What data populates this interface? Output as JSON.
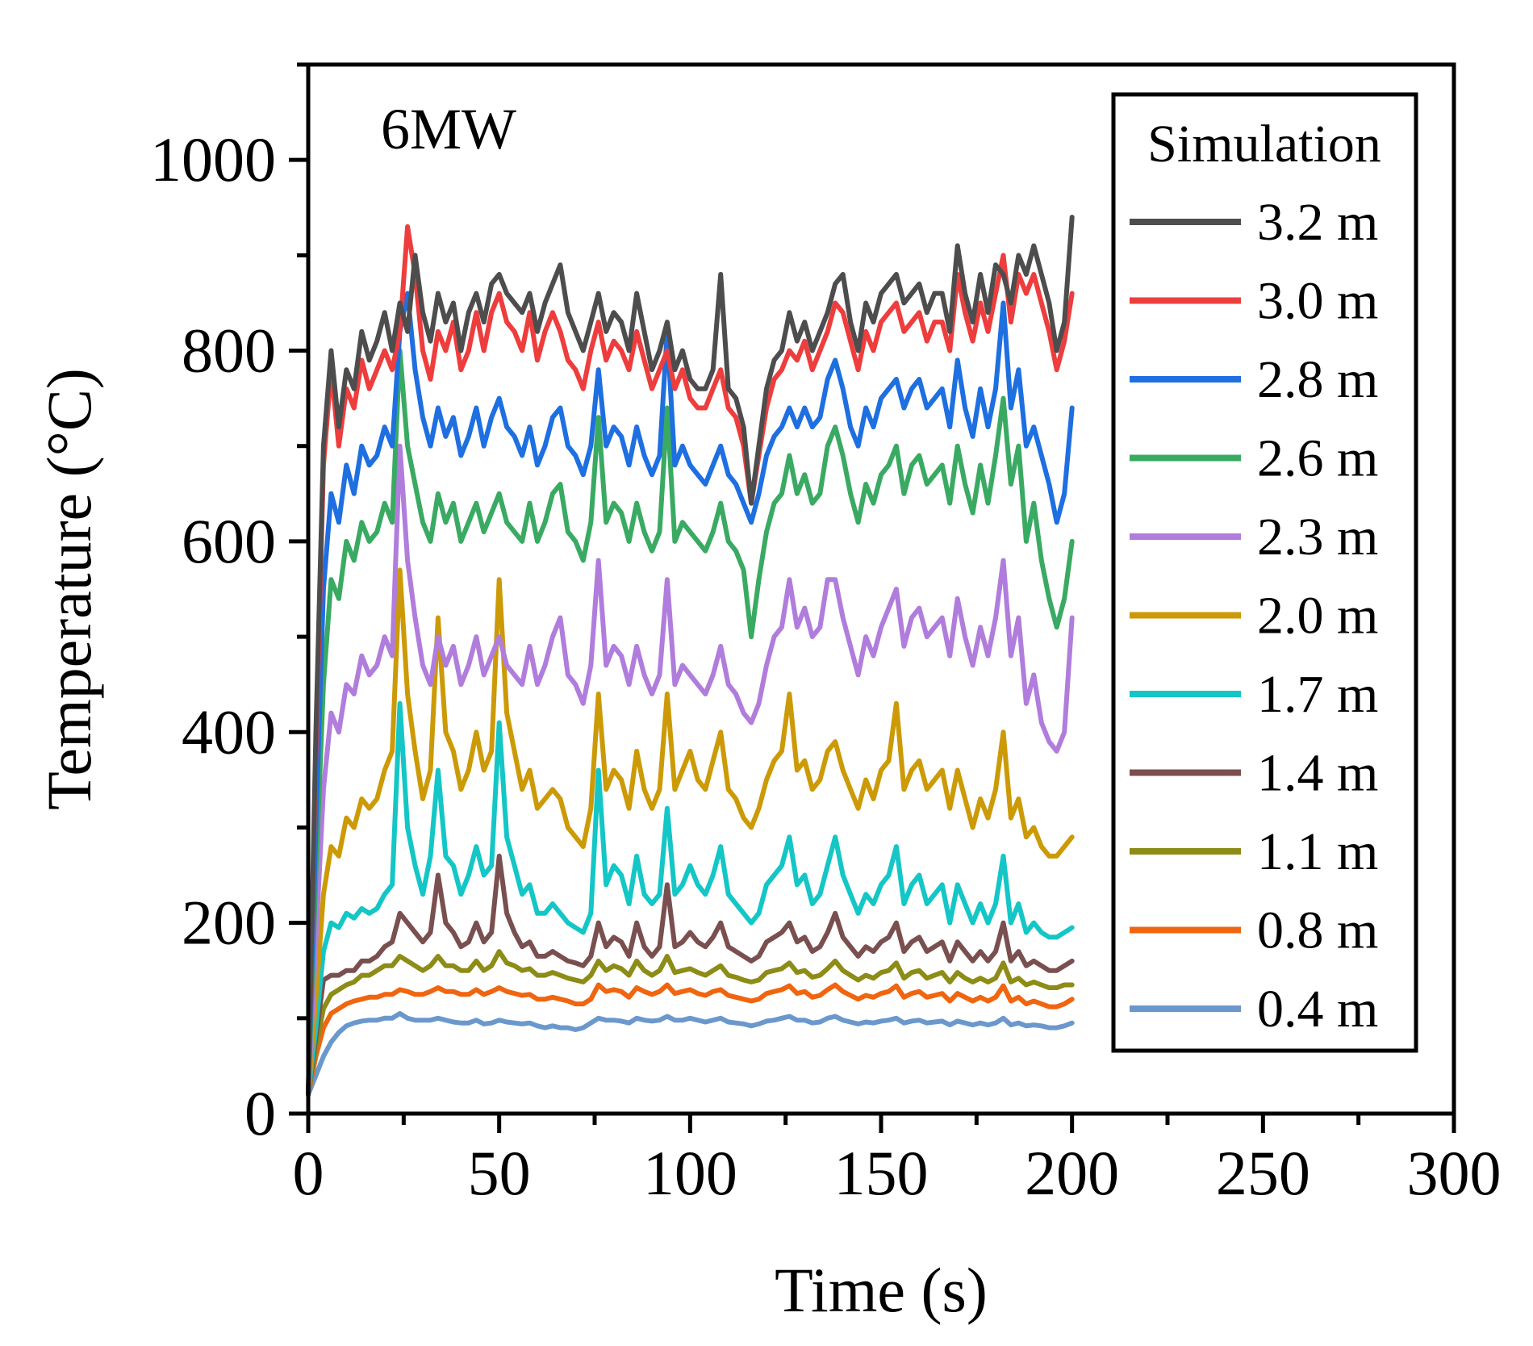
{
  "chart_data": {
    "type": "line",
    "title": "",
    "annotation": "6MW",
    "xlabel": "Time (s)",
    "ylabel": "Temperature (°C)",
    "xlim": [
      0,
      300
    ],
    "ylim": [
      0,
      1100
    ],
    "xticks": [
      0,
      50,
      100,
      150,
      200,
      250,
      300
    ],
    "yticks": [
      0,
      200,
      400,
      600,
      800,
      1000
    ],
    "x": [
      0,
      2,
      4,
      6,
      8,
      10,
      12,
      14,
      16,
      18,
      20,
      22,
      24,
      26,
      28,
      30,
      32,
      34,
      36,
      38,
      40,
      42,
      44,
      46,
      48,
      50,
      52,
      54,
      56,
      58,
      60,
      62,
      64,
      66,
      68,
      70,
      72,
      74,
      76,
      78,
      80,
      82,
      84,
      86,
      88,
      90,
      92,
      94,
      96,
      98,
      100,
      102,
      104,
      106,
      108,
      110,
      112,
      114,
      116,
      118,
      120,
      122,
      124,
      126,
      128,
      130,
      132,
      134,
      136,
      138,
      140,
      142,
      144,
      146,
      148,
      150,
      152,
      154,
      156,
      158,
      160,
      162,
      164,
      166,
      168,
      170,
      172,
      174,
      176,
      178,
      180,
      182,
      184,
      186,
      188,
      190,
      192,
      194,
      196,
      198,
      200
    ],
    "legend": {
      "title": "Simulation",
      "position": "top-right"
    },
    "series": [
      {
        "name": "3.2 m",
        "color": "#4d4d4d",
        "values": [
          20,
          400,
          700,
          800,
          720,
          780,
          760,
          820,
          790,
          810,
          840,
          800,
          850,
          820,
          900,
          840,
          810,
          860,
          830,
          850,
          800,
          840,
          860,
          830,
          870,
          880,
          860,
          850,
          840,
          860,
          820,
          850,
          870,
          890,
          840,
          820,
          800,
          830,
          860,
          820,
          840,
          830,
          800,
          860,
          820,
          780,
          800,
          830,
          780,
          800,
          770,
          760,
          760,
          780,
          880,
          760,
          750,
          720,
          640,
          700,
          760,
          790,
          800,
          840,
          810,
          830,
          800,
          820,
          840,
          870,
          880,
          830,
          800,
          850,
          830,
          860,
          870,
          880,
          850,
          860,
          870,
          840,
          860,
          860,
          820,
          910,
          860,
          830,
          880,
          840,
          890,
          880,
          850,
          900,
          880,
          910,
          880,
          850,
          800,
          830,
          940
        ]
      },
      {
        "name": "3.0 m",
        "color": "#ee3d3d",
        "values": [
          20,
          380,
          680,
          780,
          700,
          760,
          740,
          790,
          760,
          780,
          800,
          780,
          820,
          930,
          880,
          800,
          770,
          820,
          800,
          830,
          780,
          800,
          840,
          800,
          840,
          860,
          830,
          820,
          800,
          840,
          790,
          820,
          840,
          820,
          790,
          780,
          760,
          800,
          830,
          790,
          810,
          800,
          780,
          820,
          790,
          760,
          780,
          800,
          760,
          780,
          750,
          740,
          740,
          760,
          780,
          740,
          730,
          700,
          640,
          690,
          740,
          770,
          780,
          800,
          790,
          810,
          780,
          800,
          820,
          850,
          840,
          810,
          780,
          820,
          800,
          830,
          840,
          850,
          820,
          830,
          840,
          810,
          830,
          830,
          800,
          880,
          840,
          810,
          850,
          820,
          860,
          900,
          830,
          880,
          860,
          880,
          850,
          820,
          780,
          810,
          860
        ]
      },
      {
        "name": "2.8 m",
        "color": "#1e6fe0",
        "values": [
          20,
          300,
          550,
          650,
          620,
          680,
          650,
          700,
          680,
          690,
          720,
          700,
          820,
          860,
          780,
          730,
          700,
          740,
          710,
          730,
          690,
          710,
          740,
          700,
          730,
          750,
          720,
          710,
          690,
          720,
          680,
          700,
          730,
          740,
          700,
          690,
          670,
          700,
          780,
          700,
          720,
          710,
          680,
          720,
          690,
          670,
          690,
          820,
          680,
          700,
          680,
          670,
          660,
          680,
          700,
          670,
          660,
          640,
          620,
          650,
          690,
          710,
          720,
          740,
          720,
          740,
          720,
          730,
          770,
          790,
          760,
          720,
          700,
          740,
          720,
          750,
          760,
          770,
          740,
          760,
          770,
          740,
          750,
          760,
          720,
          790,
          740,
          710,
          760,
          720,
          760,
          850,
          740,
          780,
          700,
          720,
          690,
          660,
          620,
          650,
          740
        ]
      },
      {
        "name": "2.6 m",
        "color": "#3aaa63",
        "values": [
          20,
          250,
          450,
          560,
          540,
          600,
          580,
          620,
          600,
          610,
          640,
          620,
          800,
          700,
          660,
          620,
          600,
          650,
          620,
          640,
          600,
          620,
          640,
          610,
          630,
          650,
          620,
          610,
          600,
          640,
          600,
          620,
          650,
          660,
          610,
          600,
          580,
          620,
          730,
          620,
          640,
          630,
          600,
          640,
          610,
          590,
          610,
          740,
          600,
          620,
          610,
          600,
          590,
          610,
          640,
          600,
          590,
          570,
          500,
          560,
          610,
          640,
          650,
          690,
          650,
          670,
          640,
          650,
          700,
          720,
          690,
          650,
          620,
          660,
          640,
          670,
          680,
          700,
          650,
          680,
          690,
          660,
          670,
          680,
          640,
          700,
          660,
          630,
          680,
          640,
          690,
          750,
          660,
          700,
          600,
          640,
          580,
          540,
          510,
          540,
          600
        ]
      },
      {
        "name": "2.3 m",
        "color": "#b07ddc",
        "values": [
          20,
          180,
          340,
          420,
          400,
          450,
          440,
          480,
          460,
          470,
          500,
          480,
          700,
          580,
          520,
          470,
          450,
          500,
          470,
          490,
          450,
          470,
          500,
          460,
          480,
          500,
          470,
          460,
          450,
          490,
          450,
          470,
          500,
          520,
          460,
          450,
          430,
          470,
          580,
          470,
          490,
          480,
          450,
          490,
          460,
          440,
          460,
          560,
          450,
          470,
          460,
          450,
          440,
          460,
          490,
          450,
          440,
          420,
          410,
          430,
          470,
          500,
          510,
          560,
          510,
          530,
          500,
          510,
          560,
          560,
          520,
          490,
          460,
          500,
          480,
          510,
          530,
          550,
          490,
          520,
          530,
          500,
          510,
          520,
          480,
          540,
          500,
          470,
          510,
          480,
          520,
          580,
          480,
          520,
          430,
          460,
          410,
          390,
          380,
          400,
          520
        ]
      },
      {
        "name": "2.0 m",
        "color": "#cc9a06",
        "values": [
          20,
          120,
          230,
          280,
          270,
          310,
          300,
          330,
          320,
          330,
          360,
          380,
          570,
          440,
          380,
          330,
          360,
          520,
          400,
          380,
          340,
          360,
          400,
          360,
          380,
          560,
          420,
          380,
          340,
          360,
          320,
          330,
          340,
          330,
          300,
          290,
          280,
          320,
          440,
          340,
          360,
          350,
          320,
          380,
          340,
          320,
          340,
          440,
          340,
          360,
          380,
          350,
          340,
          370,
          400,
          340,
          330,
          310,
          300,
          320,
          350,
          370,
          380,
          440,
          360,
          370,
          340,
          350,
          380,
          390,
          360,
          340,
          320,
          350,
          330,
          360,
          370,
          430,
          340,
          360,
          370,
          340,
          350,
          360,
          320,
          360,
          330,
          300,
          330,
          310,
          340,
          400,
          310,
          330,
          290,
          300,
          280,
          270,
          270,
          280,
          290
        ]
      },
      {
        "name": "1.7 m",
        "color": "#14c6c6",
        "values": [
          20,
          90,
          170,
          200,
          195,
          210,
          205,
          215,
          210,
          215,
          230,
          240,
          430,
          300,
          260,
          230,
          270,
          360,
          270,
          260,
          230,
          250,
          280,
          250,
          260,
          410,
          290,
          260,
          230,
          240,
          210,
          210,
          220,
          210,
          200,
          195,
          190,
          210,
          360,
          240,
          260,
          250,
          220,
          270,
          230,
          220,
          230,
          320,
          230,
          240,
          260,
          240,
          230,
          250,
          280,
          230,
          220,
          210,
          200,
          210,
          240,
          250,
          260,
          290,
          240,
          250,
          220,
          230,
          260,
          290,
          250,
          230,
          210,
          230,
          220,
          240,
          250,
          280,
          220,
          240,
          250,
          220,
          230,
          240,
          200,
          240,
          220,
          200,
          220,
          200,
          220,
          270,
          200,
          220,
          190,
          200,
          190,
          185,
          185,
          190,
          195
        ]
      },
      {
        "name": "1.4 m",
        "color": "#7a4f4f",
        "values": [
          20,
          80,
          140,
          145,
          145,
          150,
          150,
          160,
          160,
          165,
          175,
          180,
          210,
          200,
          190,
          180,
          190,
          250,
          200,
          190,
          175,
          180,
          200,
          180,
          190,
          270,
          210,
          190,
          175,
          180,
          165,
          165,
          170,
          165,
          160,
          158,
          155,
          165,
          200,
          175,
          185,
          180,
          165,
          200,
          175,
          165,
          175,
          240,
          175,
          180,
          190,
          180,
          175,
          185,
          200,
          175,
          170,
          165,
          160,
          165,
          180,
          185,
          190,
          200,
          180,
          185,
          170,
          175,
          190,
          210,
          185,
          175,
          165,
          175,
          170,
          180,
          185,
          200,
          170,
          180,
          185,
          170,
          175,
          180,
          160,
          180,
          170,
          160,
          170,
          160,
          170,
          200,
          160,
          170,
          155,
          160,
          155,
          150,
          150,
          155,
          160
        ]
      },
      {
        "name": "1.1 m",
        "color": "#8c8c17",
        "values": [
          20,
          70,
          110,
          125,
          130,
          135,
          138,
          145,
          145,
          150,
          155,
          155,
          165,
          160,
          155,
          150,
          155,
          165,
          155,
          155,
          150,
          150,
          160,
          150,
          155,
          170,
          158,
          155,
          150,
          152,
          145,
          145,
          148,
          145,
          142,
          140,
          138,
          145,
          160,
          150,
          155,
          152,
          145,
          160,
          150,
          145,
          150,
          165,
          148,
          150,
          152,
          148,
          145,
          150,
          155,
          145,
          143,
          140,
          138,
          140,
          148,
          150,
          152,
          158,
          148,
          150,
          143,
          145,
          152,
          160,
          150,
          145,
          140,
          145,
          142,
          148,
          150,
          158,
          142,
          148,
          150,
          142,
          145,
          148,
          138,
          148,
          142,
          138,
          142,
          138,
          142,
          158,
          138,
          142,
          135,
          138,
          135,
          132,
          132,
          135,
          135
        ]
      },
      {
        "name": "0.8 m",
        "color": "#f0650f",
        "values": [
          20,
          60,
          90,
          105,
          110,
          115,
          118,
          120,
          122,
          122,
          125,
          125,
          130,
          128,
          125,
          125,
          128,
          132,
          128,
          128,
          125,
          125,
          130,
          125,
          128,
          132,
          128,
          126,
          124,
          125,
          120,
          120,
          122,
          120,
          118,
          115,
          115,
          120,
          135,
          128,
          130,
          128,
          122,
          132,
          128,
          125,
          128,
          135,
          126,
          128,
          130,
          126,
          124,
          128,
          130,
          124,
          122,
          120,
          118,
          120,
          126,
          128,
          130,
          134,
          126,
          128,
          122,
          124,
          130,
          135,
          128,
          124,
          120,
          124,
          122,
          126,
          128,
          134,
          122,
          126,
          128,
          122,
          124,
          126,
          118,
          126,
          122,
          118,
          122,
          118,
          122,
          134,
          118,
          122,
          115,
          118,
          115,
          112,
          112,
          115,
          120
        ]
      },
      {
        "name": "0.4 m",
        "color": "#6b98cc",
        "values": [
          20,
          40,
          60,
          75,
          85,
          92,
          95,
          97,
          98,
          98,
          100,
          100,
          105,
          100,
          98,
          98,
          98,
          100,
          98,
          96,
          95,
          95,
          98,
          94,
          95,
          98,
          96,
          95,
          94,
          95,
          92,
          90,
          92,
          90,
          90,
          88,
          90,
          95,
          100,
          98,
          98,
          97,
          95,
          100,
          98,
          97,
          98,
          102,
          98,
          98,
          100,
          98,
          96,
          98,
          100,
          96,
          95,
          94,
          92,
          94,
          97,
          98,
          100,
          102,
          98,
          98,
          95,
          96,
          100,
          102,
          98,
          96,
          94,
          96,
          95,
          97,
          98,
          100,
          95,
          97,
          98,
          95,
          96,
          97,
          93,
          97,
          95,
          93,
          95,
          93,
          95,
          100,
          93,
          95,
          92,
          93,
          92,
          90,
          90,
          92,
          95
        ]
      }
    ]
  }
}
